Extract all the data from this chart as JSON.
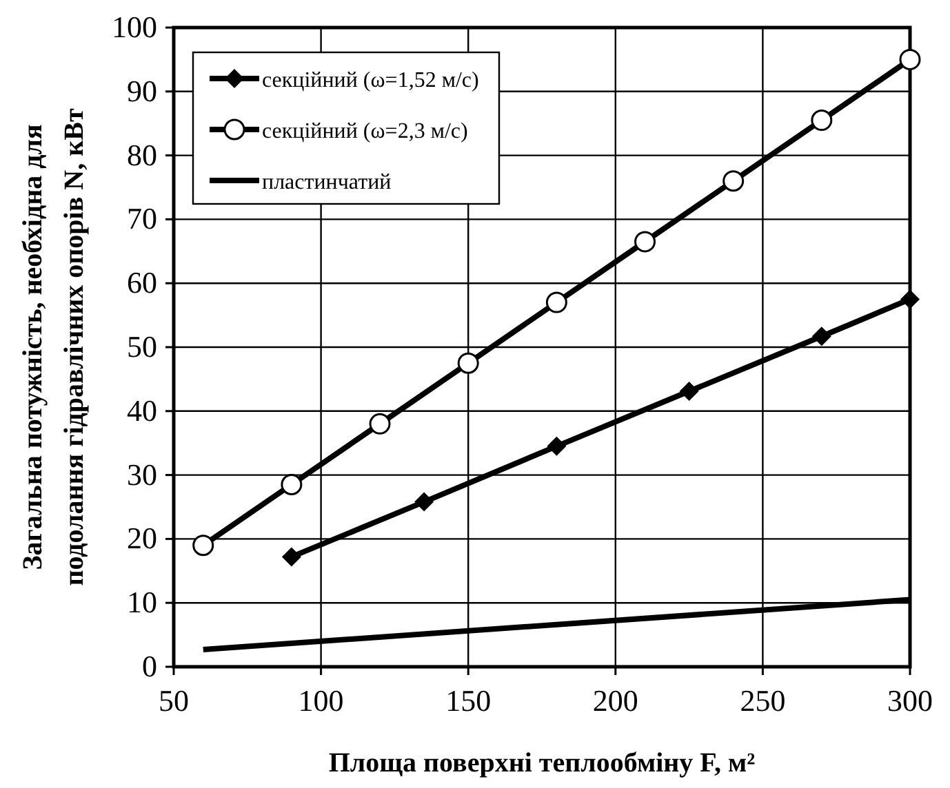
{
  "chart_data": {
    "type": "line",
    "xlabel": "Площа поверхні теплообміну F, м²",
    "ylabel": "Загальна потужність, необхідна для\nподолання гідравлічних опорів N, кВт",
    "xlim": [
      50,
      300
    ],
    "xticks": [
      50,
      100,
      150,
      200,
      250,
      300
    ],
    "ylim": [
      0,
      100
    ],
    "yticks": [
      0,
      10,
      20,
      30,
      40,
      50,
      60,
      70,
      80,
      90,
      100
    ],
    "grid": true,
    "legend": "top left",
    "line_style": "solid",
    "series": [
      {
        "name": "секційний (ω=1,52 м/с)",
        "color": "#000000",
        "marker": "diamond",
        "x": [
          90,
          135,
          180,
          225,
          270,
          300
        ],
        "values": [
          17.2,
          25.8,
          34.5,
          43.1,
          51.7,
          57.5
        ]
      },
      {
        "name": "секційний (ω=2,3 м/с)",
        "color": "#000000",
        "marker": "circle",
        "x": [
          60,
          90,
          120,
          150,
          180,
          210,
          240,
          270,
          300
        ],
        "values": [
          19,
          28.5,
          38,
          47.5,
          57,
          66.5,
          76,
          85.5,
          95
        ]
      },
      {
        "name": "пластинчатий",
        "color": "#000000",
        "marker": "none",
        "x": [
          60,
          300
        ],
        "values": [
          2.7,
          10.5
        ]
      }
    ]
  }
}
